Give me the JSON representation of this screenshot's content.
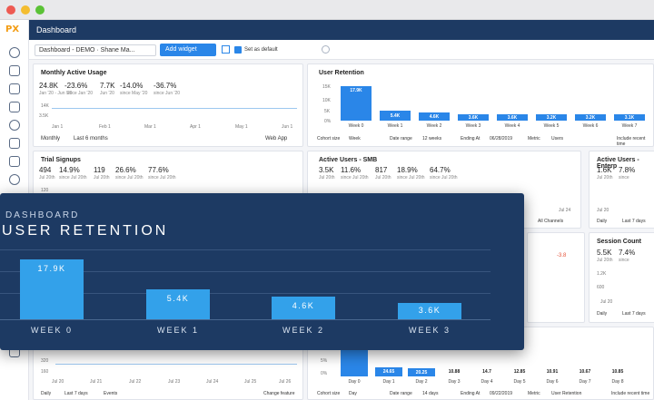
{
  "header": {
    "logo": "PX",
    "title": "Dashboard"
  },
  "toolbar": {
    "dashboard": "Dashboard - DEMO · Shane Ma...",
    "add_widget": "Add widget",
    "set_default": "Set as default"
  },
  "mau": {
    "title": "Monthly Active Usage",
    "v1": "24.8K",
    "s1": "Jan '20 - Jun '20",
    "v2": "-23.6%",
    "s2": "since Jan '20",
    "v3": "7.7K",
    "s3": "Jun '20",
    "v4": "-14.0%",
    "s4": "since May '20",
    "v5": "-36.7%",
    "s5": "since Jun '20",
    "y_ticks": [
      "14K",
      "3.5K"
    ],
    "x_ticks": [
      "Jan 1",
      "Feb 1",
      "Mar 1",
      "Apr 1",
      "May 1",
      "Jun 1"
    ],
    "footer": [
      "Monthly",
      "Last 6 months",
      "Web App"
    ]
  },
  "ur": {
    "title": "User Retention",
    "y_ticks": [
      "15K",
      "10K",
      "5K",
      "0%"
    ],
    "weeks": [
      "Week 0",
      "Week 1",
      "Week 2",
      "Week 3",
      "Week 4",
      "Week 5",
      "Week 6",
      "Week 7"
    ],
    "labels": [
      "17.9K",
      "5.4K",
      "4.6K",
      "3.6K",
      "3.6K",
      "3.2K",
      "3.2K",
      "3.1K"
    ],
    "footer": [
      "Cohort size",
      "Week",
      "Date range",
      "12 weeks",
      "Ending At",
      "06/28/2019",
      "Metric",
      "Users",
      "Include recent time"
    ]
  },
  "trial": {
    "title": "Trial Signups",
    "v1": "494",
    "v2": "14.9%",
    "v3": "119",
    "v4": "26.6%",
    "v5": "77.6%",
    "s1": "Jul 20th",
    "s2": "since Jul 20th",
    "s3": "Jul 20th",
    "s4": "since Jul 20th",
    "s5": "since Jul 20th",
    "y": "120"
  },
  "smb": {
    "title": "Active Users - SMB",
    "v1": "3.5K",
    "v2": "11.6%",
    "v3": "817",
    "v4": "18.9%",
    "v5": "64.7%",
    "s1": "Jul 20th",
    "s2": "since Jul 20th",
    "s3": "Jul 20th",
    "s4": "since Jul 20th",
    "s5": "since Jul 20th",
    "tick": "Jul 24",
    "footer": "All Channels"
  },
  "ent": {
    "title": "Active Users - Enterp",
    "v1": "1.6K",
    "v2": "7.8%",
    "s1": "Jul 20th",
    "s2": "since",
    "x": "Jul 20",
    "footer": [
      "Daily",
      "Last 7 days"
    ]
  },
  "session": {
    "title": "Session Count",
    "v1": "5.5K",
    "v2": "7.4%",
    "s1": "Jul 20th",
    "s2": "since",
    "y1": "1.2K",
    "y2": "600",
    "x": "Jul 20",
    "footer": [
      "Daily",
      "Last 7 days"
    ]
  },
  "minus": "-3.8",
  "bottom_left": {
    "y1": "320",
    "y2": "160",
    "x": [
      "Jul 20",
      "Jul 21",
      "Jul 22",
      "Jul 23",
      "Jul 24",
      "Jul 25",
      "Jul 26"
    ],
    "footer": [
      "Daily",
      "Last 7 days",
      "Events",
      "Change feature"
    ]
  },
  "bottom_right": {
    "y1": "5%",
    "y2": "0%",
    "labels": [
      "",
      "24.65",
      "20.25",
      "10.88",
      "14.7",
      "12.85",
      "10.91",
      "10.67",
      "10.85"
    ],
    "days": [
      "Day 0",
      "Day 1",
      "Day 2",
      "Day 3",
      "Day 4",
      "Day 5",
      "Day 6",
      "Day 7",
      "Day 8"
    ],
    "footer": [
      "Cohort size",
      "Day",
      "Date range",
      "14 days",
      "Ending At",
      "09/22/2019",
      "Metric",
      "User Retention",
      "Include recent time"
    ]
  },
  "overlay": {
    "kicker": "DASHBOARD",
    "title": "USER RETENTION",
    "bars": [
      "17.9K",
      "5.4K",
      "4.6K",
      "3.6K"
    ],
    "weeks": [
      "WEEK 0",
      "WEEK 1",
      "WEEK 2",
      "WEEK 3"
    ]
  },
  "chart_data": {
    "type": "bar",
    "title": "USER RETENTION",
    "categories": [
      "WEEK 0",
      "WEEK 1",
      "WEEK 2",
      "WEEK 3"
    ],
    "values": [
      17.9,
      5.4,
      4.6,
      3.6
    ]
  }
}
